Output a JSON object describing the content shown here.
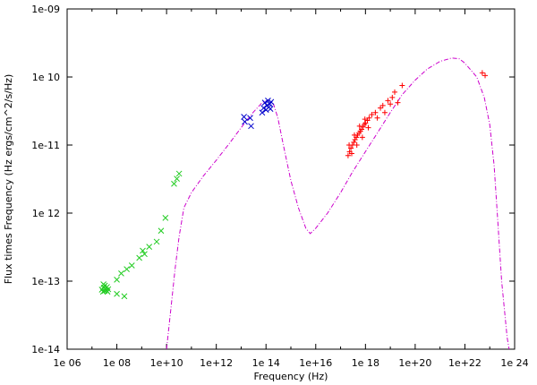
{
  "chart_data": {
    "type": "scatter",
    "title": "",
    "xlabel": "Frequency (Hz)",
    "ylabel": "Flux times Frequency (Hz ergs/cm^2/s/Hz)",
    "x_scale": "log",
    "y_scale": "log",
    "xlim": [
      1000000.0,
      1e+24
    ],
    "ylim": [
      1e-14,
      1e-09
    ],
    "grid": false,
    "legend": "none",
    "x_ticks": [
      {
        "value": 1000000.0,
        "label": "1e 06"
      },
      {
        "value": 100000000.0,
        "label": "1e 08"
      },
      {
        "value": 10000000000.0,
        "label": "1e+10"
      },
      {
        "value": 1000000000000.0,
        "label": "1e+12"
      },
      {
        "value": 100000000000000.0,
        "label": "1e 14"
      },
      {
        "value": 1e+16,
        "label": "1e+16"
      },
      {
        "value": 1e+18,
        "label": "1e 18"
      },
      {
        "value": 1e+20,
        "label": "1e+20"
      },
      {
        "value": 1e+22,
        "label": "1e+22"
      },
      {
        "value": 1e+24,
        "label": "1e 24"
      }
    ],
    "y_ticks": [
      {
        "value": 1e-14,
        "label": "1e-14"
      },
      {
        "value": 1e-13,
        "label": "1e-13"
      },
      {
        "value": 1e-12,
        "label": "1e 12"
      },
      {
        "value": 1e-11,
        "label": "1e-11"
      },
      {
        "value": 1e-10,
        "label": "1e 10"
      },
      {
        "value": 1e-09,
        "label": "1e-09"
      }
    ],
    "colors": {
      "radio": "#22cc22",
      "optical": "#0000cc",
      "xray": "#ff0000",
      "model": "#cc00cc",
      "axes": "#000000"
    },
    "series": [
      {
        "color": "radio",
        "marker": "x",
        "points": [
          [
            25000000.0,
            7.5e-14
          ],
          [
            28000000.0,
            7e-14
          ],
          [
            30000000.0,
            8e-14
          ],
          [
            32000000.0,
            7.2e-14
          ],
          [
            35000000.0,
            7.8e-14
          ],
          [
            38000000.0,
            7.3e-14
          ],
          [
            40000000.0,
            8.2e-14
          ],
          [
            42000000.0,
            7e-14
          ],
          [
            45000000.0,
            7.6e-14
          ],
          [
            33000000.0,
            8.6e-14
          ],
          [
            29000000.0,
            9e-14
          ],
          [
            100000000.0,
            6.5e-14
          ],
          [
            100000000.0,
            1.05e-13
          ],
          [
            150000000.0,
            1.3e-13
          ],
          [
            200000000.0,
            6e-14
          ],
          [
            250000000.0,
            1.5e-13
          ],
          [
            400000000.0,
            1.7e-13
          ],
          [
            800000000.0,
            2.2e-13
          ],
          [
            1100000000.0,
            2.8e-13
          ],
          [
            1300000000.0,
            2.5e-13
          ],
          [
            2000000000.0,
            3.2e-13
          ],
          [
            4000000000.0,
            3.8e-13
          ],
          [
            6000000000.0,
            5.5e-13
          ],
          [
            9000000000.0,
            8.5e-13
          ],
          [
            20000000000.0,
            2.7e-12
          ],
          [
            26000000000.0,
            3.2e-12
          ],
          [
            32000000000.0,
            3.8e-12
          ]
        ]
      },
      {
        "color": "optical",
        "marker": "x",
        "points": [
          [
            13000000000000.0,
            2.6e-11
          ],
          [
            14000000000000.0,
            2.2e-11
          ],
          [
            23000000000000.0,
            2.5e-11
          ],
          [
            25000000000000.0,
            1.9e-11
          ],
          [
            70000000000000.0,
            3e-11
          ],
          [
            80000000000000.0,
            3.5e-11
          ],
          [
            90000000000000.0,
            4.2e-11
          ],
          [
            100000000000000.0,
            3.3e-11
          ],
          [
            110000000000000.0,
            3.8e-11
          ],
          [
            120000000000000.0,
            4.5e-11
          ],
          [
            130000000000000.0,
            3.6e-11
          ],
          [
            140000000000000.0,
            4e-11
          ],
          [
            150000000000000.0,
            3.4e-11
          ],
          [
            160000000000000.0,
            4.3e-11
          ]
        ]
      },
      {
        "color": "xray",
        "marker": "plus",
        "points": [
          [
            2e+17,
            7e-12
          ],
          [
            2.3e+17,
            8e-12
          ],
          [
            2.6e+17,
            9e-12
          ],
          [
            3e+17,
            1e-11
          ],
          [
            3.4e+17,
            1.1e-11
          ],
          [
            3.8e+17,
            1.2e-11
          ],
          [
            4.3e+17,
            1.3e-11
          ],
          [
            4.8e+17,
            1.4e-11
          ],
          [
            5.5e+17,
            1.5e-11
          ],
          [
            6.2e+17,
            1.6e-11
          ],
          [
            7e+17,
            1.7e-11
          ],
          [
            8e+17,
            1.85e-11
          ],
          [
            9e+17,
            2e-11
          ],
          [
            1e+18,
            2.1e-11
          ],
          [
            1.2e+18,
            2.3e-11
          ],
          [
            1.4e+18,
            2.5e-11
          ],
          [
            2.2e+17,
            1e-11
          ],
          [
            2.8e+17,
            7.5e-12
          ],
          [
            3.6e+17,
            1.4e-11
          ],
          [
            4.5e+17,
            1e-11
          ],
          [
            5.8e+17,
            1.9e-11
          ],
          [
            7.5e+17,
            1.3e-11
          ],
          [
            9.5e+17,
            2.4e-11
          ],
          [
            1.3e+18,
            1.8e-11
          ],
          [
            1.8e+18,
            2.8e-11
          ],
          [
            2.5e+18,
            3e-11
          ],
          [
            3e+18,
            2.5e-11
          ],
          [
            4e+18,
            3.5e-11
          ],
          [
            5e+18,
            3.8e-11
          ],
          [
            6e+18,
            3e-11
          ],
          [
            8e+18,
            4.5e-11
          ],
          [
            1.2e+19,
            5e-11
          ],
          [
            1.5e+19,
            6e-11
          ],
          [
            2e+19,
            4.2e-11
          ],
          [
            3e+19,
            7.5e-11
          ],
          [
            1e+19,
            4e-11
          ],
          [
            5e+22,
            1.15e-10
          ],
          [
            6.5e+22,
            1.05e-10
          ]
        ]
      }
    ],
    "model_curve": {
      "color": "model",
      "style": "dash-dot",
      "points": [
        [
          10000000000.0,
          1e-14
        ],
        [
          15000000000.0,
          4e-14
        ],
        [
          22000000000.0,
          1.5e-13
        ],
        [
          32000000000.0,
          4.5e-13
        ],
        [
          50000000000.0,
          1.2e-12
        ],
        [
          100000000000.0,
          2e-12
        ],
        [
          300000000000.0,
          3.5e-12
        ],
        [
          1000000000000.0,
          6e-12
        ],
        [
          3000000000000.0,
          1e-11
        ],
        [
          10000000000000.0,
          1.8e-11
        ],
        [
          30000000000000.0,
          3e-11
        ],
        [
          70000000000000.0,
          4.2e-11
        ],
        [
          130000000000000.0,
          4.6e-11
        ],
        [
          200000000000000.0,
          4e-11
        ],
        [
          300000000000000.0,
          2.5e-11
        ],
        [
          500000000000000.0,
          1e-11
        ],
        [
          1000000000000000.0,
          3e-12
        ],
        [
          2000000000000000.0,
          1.2e-12
        ],
        [
          4000000000000000.0,
          6e-13
        ],
        [
          6000000000000000.0,
          5e-13
        ],
        [
          1e+16,
          6e-13
        ],
        [
          3e+16,
          1e-12
        ],
        [
          1e+17,
          2e-12
        ],
        [
          3e+17,
          4e-12
        ],
        [
          1e+18,
          8e-12
        ],
        [
          3e+18,
          1.5e-11
        ],
        [
          1e+19,
          3e-11
        ],
        [
          3e+19,
          5.5e-11
        ],
        [
          1e+20,
          9e-11
        ],
        [
          3e+20,
          1.3e-10
        ],
        [
          1e+21,
          1.7e-10
        ],
        [
          3e+21,
          1.9e-10
        ],
        [
          6e+21,
          1.85e-10
        ],
        [
          1e+22,
          1.6e-10
        ],
        [
          3e+22,
          1e-10
        ],
        [
          6e+22,
          5e-11
        ],
        [
          1e+23,
          2e-11
        ],
        [
          1.5e+23,
          5e-12
        ],
        [
          2e+23,
          1e-12
        ],
        [
          3e+23,
          1e-13
        ],
        [
          5e+23,
          1.5e-14
        ],
        [
          6e+23,
          1e-14
        ]
      ]
    }
  }
}
